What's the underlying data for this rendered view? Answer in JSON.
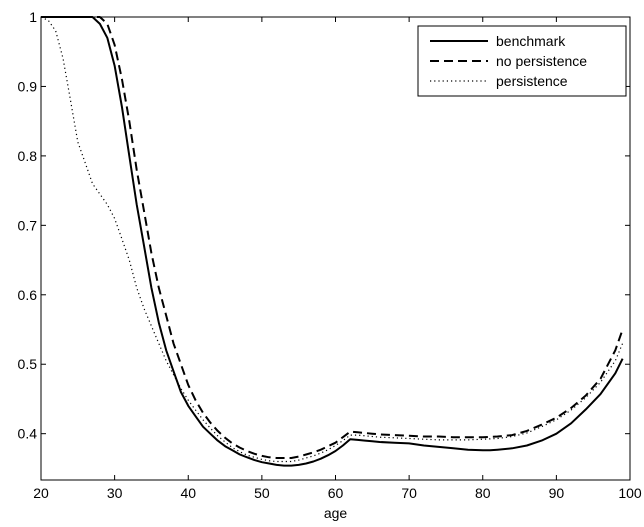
{
  "chart_data": {
    "type": "line",
    "title": "",
    "xlabel": "age",
    "ylabel": "",
    "xlim": [
      20,
      100
    ],
    "ylim": [
      0.3333,
      1.0
    ],
    "xticks": [
      20,
      30,
      40,
      50,
      60,
      70,
      80,
      90,
      100
    ],
    "yticks": [
      0.4,
      0.5,
      0.6,
      0.7,
      0.8,
      0.9,
      1
    ],
    "xtick_labels": [
      "20",
      "30",
      "40",
      "50",
      "60",
      "70",
      "80",
      "90",
      "100"
    ],
    "ytick_labels": [
      "0.4",
      "0.5",
      "0.6",
      "0.7",
      "0.8",
      "0.9",
      "1"
    ],
    "grid": false,
    "legend_position": "top-right",
    "series": [
      {
        "name": "benchmark",
        "style": "solid",
        "color": "#000000",
        "points": [
          [
            20,
            1.0
          ],
          [
            22,
            1.0
          ],
          [
            24,
            1.0
          ],
          [
            26,
            1.0
          ],
          [
            27,
            1.0
          ],
          [
            28,
            0.99
          ],
          [
            29,
            0.97
          ],
          [
            30,
            0.93
          ],
          [
            31,
            0.87
          ],
          [
            32,
            0.8
          ],
          [
            33,
            0.73
          ],
          [
            34,
            0.67
          ],
          [
            35,
            0.61
          ],
          [
            36,
            0.56
          ],
          [
            37,
            0.52
          ],
          [
            38,
            0.49
          ],
          [
            39,
            0.46
          ],
          [
            40,
            0.44
          ],
          [
            41,
            0.425
          ],
          [
            42,
            0.41
          ],
          [
            43,
            0.4
          ],
          [
            44,
            0.39
          ],
          [
            45,
            0.382
          ],
          [
            46,
            0.376
          ],
          [
            47,
            0.37
          ],
          [
            48,
            0.366
          ],
          [
            49,
            0.362
          ],
          [
            50,
            0.359
          ],
          [
            51,
            0.357
          ],
          [
            52,
            0.355
          ],
          [
            53,
            0.354
          ],
          [
            54,
            0.354
          ],
          [
            55,
            0.355
          ],
          [
            56,
            0.357
          ],
          [
            57,
            0.36
          ],
          [
            58,
            0.364
          ],
          [
            59,
            0.369
          ],
          [
            60,
            0.375
          ],
          [
            61,
            0.383
          ],
          [
            62,
            0.392
          ],
          [
            63,
            0.391
          ],
          [
            64,
            0.39
          ],
          [
            65,
            0.389
          ],
          [
            66,
            0.388
          ],
          [
            68,
            0.387
          ],
          [
            70,
            0.386
          ],
          [
            72,
            0.383
          ],
          [
            74,
            0.381
          ],
          [
            76,
            0.379
          ],
          [
            78,
            0.377
          ],
          [
            80,
            0.376
          ],
          [
            81,
            0.376
          ],
          [
            82,
            0.377
          ],
          [
            84,
            0.379
          ],
          [
            86,
            0.383
          ],
          [
            88,
            0.39
          ],
          [
            90,
            0.4
          ],
          [
            92,
            0.415
          ],
          [
            94,
            0.435
          ],
          [
            96,
            0.457
          ],
          [
            98,
            0.487
          ],
          [
            99,
            0.508
          ]
        ]
      },
      {
        "name": "no persistence",
        "style": "dashed",
        "color": "#000000",
        "points": [
          [
            20,
            1.0
          ],
          [
            22,
            1.0
          ],
          [
            24,
            1.0
          ],
          [
            26,
            1.0
          ],
          [
            27,
            1.0
          ],
          [
            28,
            1.0
          ],
          [
            29,
            0.99
          ],
          [
            30,
            0.96
          ],
          [
            31,
            0.91
          ],
          [
            32,
            0.85
          ],
          [
            33,
            0.78
          ],
          [
            34,
            0.72
          ],
          [
            35,
            0.66
          ],
          [
            36,
            0.61
          ],
          [
            37,
            0.57
          ],
          [
            38,
            0.53
          ],
          [
            39,
            0.5
          ],
          [
            40,
            0.47
          ],
          [
            41,
            0.448
          ],
          [
            42,
            0.43
          ],
          [
            43,
            0.416
          ],
          [
            44,
            0.404
          ],
          [
            45,
            0.394
          ],
          [
            46,
            0.386
          ],
          [
            47,
            0.38
          ],
          [
            48,
            0.375
          ],
          [
            49,
            0.371
          ],
          [
            50,
            0.368
          ],
          [
            51,
            0.366
          ],
          [
            52,
            0.365
          ],
          [
            53,
            0.365
          ],
          [
            54,
            0.365
          ],
          [
            55,
            0.367
          ],
          [
            56,
            0.37
          ],
          [
            57,
            0.373
          ],
          [
            58,
            0.377
          ],
          [
            59,
            0.382
          ],
          [
            60,
            0.387
          ],
          [
            61,
            0.395
          ],
          [
            62,
            0.403
          ],
          [
            63,
            0.402
          ],
          [
            64,
            0.401
          ],
          [
            65,
            0.4
          ],
          [
            66,
            0.399
          ],
          [
            68,
            0.398
          ],
          [
            70,
            0.397
          ],
          [
            72,
            0.396
          ],
          [
            74,
            0.396
          ],
          [
            76,
            0.395
          ],
          [
            78,
            0.395
          ],
          [
            80,
            0.395
          ],
          [
            82,
            0.396
          ],
          [
            84,
            0.398
          ],
          [
            86,
            0.404
          ],
          [
            88,
            0.413
          ],
          [
            90,
            0.423
          ],
          [
            92,
            0.437
          ],
          [
            94,
            0.455
          ],
          [
            96,
            0.479
          ],
          [
            98,
            0.52
          ],
          [
            99,
            0.55
          ]
        ]
      },
      {
        "name": "persistence",
        "style": "dotted",
        "color": "#000000",
        "points": [
          [
            20,
            1.0
          ],
          [
            21,
            0.995
          ],
          [
            22,
            0.98
          ],
          [
            23,
            0.94
          ],
          [
            24,
            0.88
          ],
          [
            25,
            0.82
          ],
          [
            26,
            0.79
          ],
          [
            27,
            0.76
          ],
          [
            28,
            0.745
          ],
          [
            29,
            0.73
          ],
          [
            30,
            0.71
          ],
          [
            31,
            0.68
          ],
          [
            32,
            0.65
          ],
          [
            33,
            0.61
          ],
          [
            34,
            0.58
          ],
          [
            35,
            0.555
          ],
          [
            36,
            0.53
          ],
          [
            37,
            0.505
          ],
          [
            38,
            0.485
          ],
          [
            39,
            0.465
          ],
          [
            40,
            0.448
          ],
          [
            41,
            0.434
          ],
          [
            42,
            0.42
          ],
          [
            43,
            0.408
          ],
          [
            44,
            0.397
          ],
          [
            45,
            0.388
          ],
          [
            46,
            0.38
          ],
          [
            47,
            0.374
          ],
          [
            48,
            0.369
          ],
          [
            49,
            0.366
          ],
          [
            50,
            0.363
          ],
          [
            51,
            0.361
          ],
          [
            52,
            0.36
          ],
          [
            53,
            0.36
          ],
          [
            54,
            0.36
          ],
          [
            55,
            0.362
          ],
          [
            56,
            0.365
          ],
          [
            57,
            0.368
          ],
          [
            58,
            0.372
          ],
          [
            59,
            0.377
          ],
          [
            60,
            0.383
          ],
          [
            61,
            0.39
          ],
          [
            62,
            0.398
          ],
          [
            63,
            0.398
          ],
          [
            64,
            0.397
          ],
          [
            65,
            0.396
          ],
          [
            66,
            0.395
          ],
          [
            68,
            0.394
          ],
          [
            70,
            0.393
          ],
          [
            72,
            0.392
          ],
          [
            74,
            0.391
          ],
          [
            76,
            0.391
          ],
          [
            78,
            0.391
          ],
          [
            80,
            0.392
          ],
          [
            82,
            0.393
          ],
          [
            84,
            0.396
          ],
          [
            86,
            0.401
          ],
          [
            88,
            0.41
          ],
          [
            90,
            0.42
          ],
          [
            92,
            0.434
          ],
          [
            94,
            0.452
          ],
          [
            96,
            0.474
          ],
          [
            98,
            0.505
          ],
          [
            99,
            0.53
          ]
        ]
      }
    ]
  }
}
